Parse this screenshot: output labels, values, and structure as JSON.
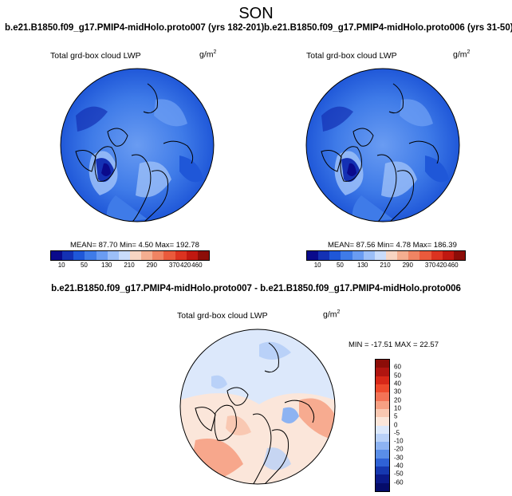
{
  "title": "SON",
  "panels": [
    {
      "title": "b.e21.B1850.f09_g17.PMIP4-midHolo.proto007 (yrs 182-201)",
      "variable": "Total grd-box cloud LWP",
      "units_base": "g/m",
      "units_exp": "2",
      "stats": "MEAN= 87.70  Min=   4.50  Max= 192.78"
    },
    {
      "title": "b.e21.B1850.f09_g17.PMIP4-midHolo.proto006 (yrs 31-50)",
      "variable": "Total grd-box cloud LWP",
      "units_base": "g/m",
      "units_exp": "2",
      "stats": "MEAN= 87.56  Min=   4.78  Max= 186.39"
    }
  ],
  "colorbar": {
    "labels": [
      "10",
      "50",
      "130",
      "210",
      "290",
      "370",
      "420",
      "460"
    ],
    "colors": [
      "#0a0a8c",
      "#1431b4",
      "#1f57d8",
      "#3f7be8",
      "#6a9cf2",
      "#9cbff8",
      "#c9dcfb",
      "#f7d5c3",
      "#f4ae90",
      "#f08463",
      "#ea5a3c",
      "#dc3320",
      "#c01810",
      "#8c0d08"
    ]
  },
  "difference": {
    "title": "b.e21.B1850.f09_g17.PMIP4-midHolo.proto007 - b.e21.B1850.f09_g17.PMIP4-midHolo.proto006",
    "variable": "Total grd-box cloud LWP",
    "units_base": "g/m",
    "units_exp": "2",
    "stats": "MIN = -17.51 MAX =  22.57",
    "colorbar_labels": [
      "60",
      "50",
      "40",
      "30",
      "20",
      "10",
      "5",
      "0",
      "-5",
      "-10",
      "-20",
      "-30",
      "-40",
      "-50",
      "-60"
    ],
    "colorbar_colors": [
      "#8c0d08",
      "#b01510",
      "#d82818",
      "#ee4a2c",
      "#f37356",
      "#f6a083",
      "#f9c8b2",
      "#fbe6da",
      "#dce8fb",
      "#b9d1f8",
      "#8db3f2",
      "#5a8ee8",
      "#2f62d6",
      "#1638b0",
      "#0b1a8a",
      "#050c6a"
    ]
  }
}
